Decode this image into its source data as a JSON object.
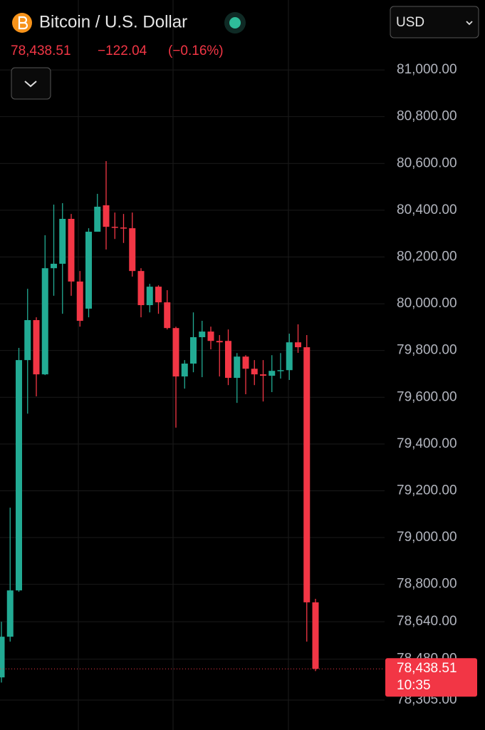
{
  "chart_data": {
    "type": "candlestick",
    "title": "Bitcoin / U.S. Dollar",
    "last_price": "78,438.51",
    "change": "−122.04",
    "change_percent": "(−0.16%)",
    "currency": "USD",
    "countdown": "10:35",
    "up_color": "#22ab94",
    "down_color": "#f23645",
    "open": [
      78402,
      78576,
      78774,
      79759,
      79930,
      79698,
      80152,
      80171,
      80363,
      80095,
      79979,
      80308,
      80421,
      80329,
      80326,
      80323,
      80140,
      79994,
      80073,
      80006,
      79896,
      79689,
      79744,
      79857,
      79881,
      79841,
      79841,
      79683,
      79774,
      79722,
      79698,
      79692,
      79713,
      79716,
      79835,
      79814,
      78723
    ],
    "high": [
      78640,
      79128,
      79811,
      80064,
      79942,
      80293,
      80424,
      80430,
      80384,
      80140,
      80323,
      80470,
      80610,
      80390,
      80384,
      80390,
      80152,
      80085,
      80079,
      80058,
      79902,
      79759,
      79963,
      79927,
      79902,
      79866,
      79890,
      79789,
      79780,
      79759,
      79759,
      79780,
      79789,
      79872,
      79912,
      79866,
      78738
    ],
    "low": [
      78380,
      78555,
      78768,
      79530,
      79604,
      79695,
      80034,
      79957,
      80034,
      79902,
      79942,
      80308,
      80232,
      80277,
      80260,
      80116,
      79942,
      79963,
      79957,
      79890,
      79470,
      79637,
      79707,
      79686,
      79805,
      79689,
      79652,
      79576,
      79613,
      79652,
      79582,
      79622,
      79680,
      79674,
      79790,
      78555,
      78429
    ],
    "close": [
      78576,
      78774,
      79759,
      79930,
      79698,
      80152,
      80171,
      80363,
      80095,
      79927,
      80308,
      80415,
      80329,
      80326,
      80323,
      80140,
      79994,
      80073,
      80006,
      79896,
      79689,
      79744,
      79857,
      79881,
      79841,
      79835,
      79683,
      79774,
      79722,
      79698,
      79692,
      79713,
      79716,
      79835,
      79814,
      78723,
      78438.51
    ],
    "ylim": [
      78177,
      81299
    ],
    "yticks": [
      {
        "value": 81000,
        "label": "81,000.00"
      },
      {
        "value": 80800,
        "label": "80,800.00"
      },
      {
        "value": 80600,
        "label": "80,600.00"
      },
      {
        "value": 80400,
        "label": "80,400.00"
      },
      {
        "value": 80200,
        "label": "80,200.00"
      },
      {
        "value": 80000,
        "label": "80,000.00"
      },
      {
        "value": 79800,
        "label": "79,800.00"
      },
      {
        "value": 79600,
        "label": "79,600.00"
      },
      {
        "value": 79400,
        "label": "79,400.00"
      },
      {
        "value": 79200,
        "label": "79,200.00"
      },
      {
        "value": 79000,
        "label": "79,000.00"
      },
      {
        "value": 78800,
        "label": "78,800.00"
      },
      {
        "value": 78640,
        "label": "78,640.00"
      },
      {
        "value": 78480,
        "label": "78,480.00"
      },
      {
        "value": 78305,
        "label": "78,305.00"
      }
    ],
    "grid": true
  }
}
